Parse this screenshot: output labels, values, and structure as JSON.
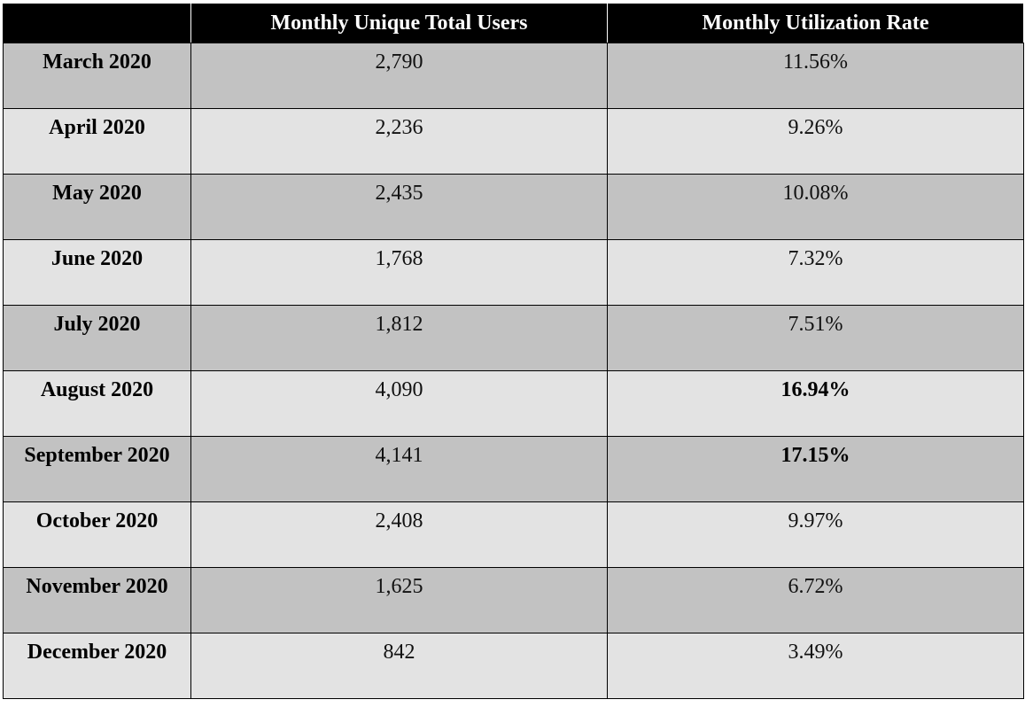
{
  "table": {
    "headers": [
      "",
      "Monthly Unique Total Users",
      "Monthly Utilization Rate"
    ],
    "rows": [
      {
        "month": "March 2020",
        "users": "2,790",
        "rate": "11.56%",
        "rate_bold": false
      },
      {
        "month": "April 2020",
        "users": "2,236",
        "rate": "9.26%",
        "rate_bold": false
      },
      {
        "month": "May 2020",
        "users": "2,435",
        "rate": "10.08%",
        "rate_bold": false
      },
      {
        "month": "June 2020",
        "users": "1,768",
        "rate": "7.32%",
        "rate_bold": false
      },
      {
        "month": "July 2020",
        "users": "1,812",
        "rate": "7.51%",
        "rate_bold": false
      },
      {
        "month": "August 2020",
        "users": "4,090",
        "rate": "16.94%",
        "rate_bold": true
      },
      {
        "month": "September 2020",
        "users": "4,141",
        "rate": "17.15%",
        "rate_bold": true
      },
      {
        "month": "October 2020",
        "users": "2,408",
        "rate": "9.97%",
        "rate_bold": false
      },
      {
        "month": "November 2020",
        "users": "1,625",
        "rate": "6.72%",
        "rate_bold": false
      },
      {
        "month": "December 2020",
        "users": "842",
        "rate": "3.49%",
        "rate_bold": false
      }
    ]
  },
  "colors": {
    "header_background": "#000000",
    "header_text": "#ffffff",
    "row_dark": "#c2c2c2",
    "row_light": "#e3e3e3",
    "border": "#000000"
  }
}
